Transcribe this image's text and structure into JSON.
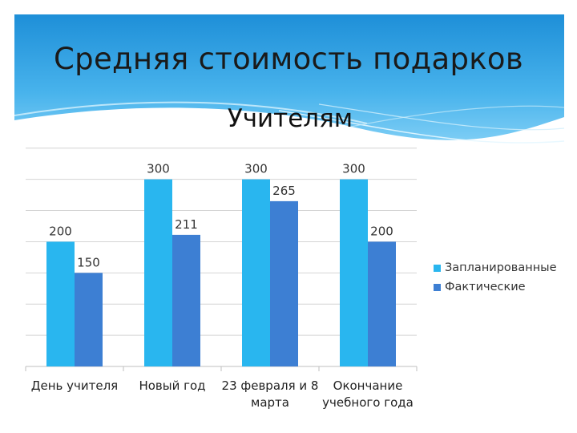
{
  "slide": {
    "title": "Средняя стоимость подарков"
  },
  "chart_data": {
    "type": "bar",
    "title": "Учителям",
    "categories": [
      [
        "День учителя"
      ],
      [
        "Новый год"
      ],
      [
        "23 февраля и 8",
        "марта"
      ],
      [
        "Окончание",
        "учебного года"
      ]
    ],
    "series": [
      {
        "name": "Запланированные",
        "color": "#29b6ef",
        "values": [
          200,
          300,
          300,
          300
        ]
      },
      {
        "name": "Фактические",
        "color": "#3d7fd3",
        "values": [
          150,
          211,
          265,
          200
        ]
      }
    ],
    "ylim": [
      0,
      350
    ],
    "grid": true,
    "data_labels": true,
    "legend_position": "right",
    "xlabel": "",
    "ylabel": ""
  }
}
